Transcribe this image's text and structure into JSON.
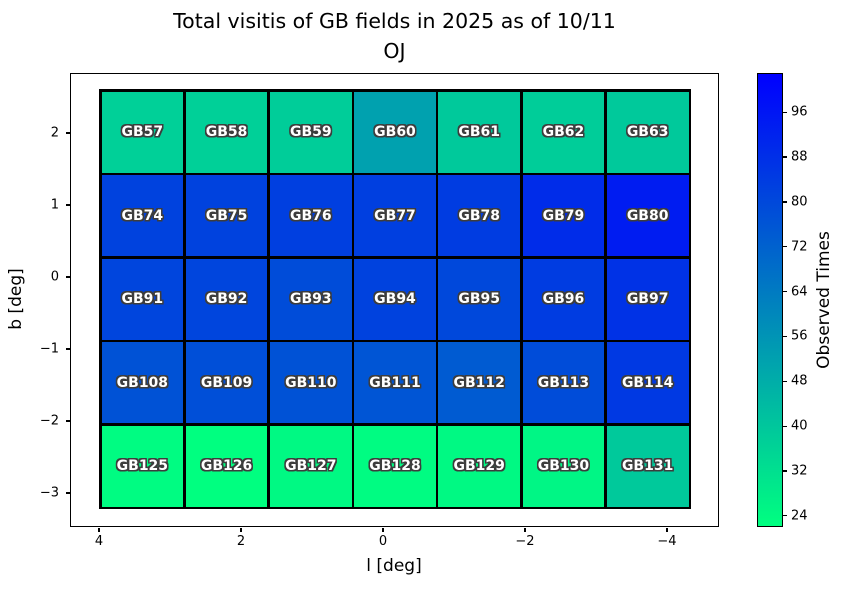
{
  "title": {
    "line1": "Total visitis of GB fields in 2025 as of 10/11",
    "line2": "OJ"
  },
  "axes": {
    "xlabel": "l [deg]",
    "ylabel": "b [deg]",
    "x_tick_labels": [
      "4",
      "2",
      "0",
      "−2",
      "−4"
    ],
    "y_tick_labels": [
      "2",
      "1",
      "0",
      "−1",
      "−2",
      "−3"
    ],
    "x_axis_inverted": true
  },
  "colorbar": {
    "label": "Observed Times",
    "ticks": [
      96,
      88,
      80,
      72,
      64,
      56,
      48,
      40,
      32,
      24
    ],
    "vmin": 22,
    "vmax": 103,
    "color_low": "#00ff80",
    "color_high": "#0000ff"
  },
  "chart_data": {
    "type": "heatmap",
    "title": "Total visitis of GB fields in 2025 as of 10/11 OJ",
    "xlabel": "l [deg]",
    "ylabel": "b [deg]",
    "colormap": "winter_r",
    "colorbar_label": "Observed Times",
    "vmin": 22,
    "vmax": 103,
    "x_centers_deg": [
      3.6,
      2.4,
      1.2,
      0.0,
      -1.2,
      -2.4,
      -3.6
    ],
    "y_centers_deg": [
      2.0,
      0.85,
      -0.3,
      -1.5,
      -2.65
    ],
    "grid": "7 columns x 5 rows, black cell edges",
    "rows": [
      {
        "b": 2.0,
        "cells": [
          {
            "label": "GB57",
            "value": 37
          },
          {
            "label": "GB58",
            "value": 37
          },
          {
            "label": "GB59",
            "value": 38
          },
          {
            "label": "GB60",
            "value": 52
          },
          {
            "label": "GB61",
            "value": 39
          },
          {
            "label": "GB62",
            "value": 38
          },
          {
            "label": "GB63",
            "value": 39
          }
        ]
      },
      {
        "b": 0.85,
        "cells": [
          {
            "label": "GB74",
            "value": 82
          },
          {
            "label": "GB75",
            "value": 82
          },
          {
            "label": "GB76",
            "value": 83
          },
          {
            "label": "GB77",
            "value": 83
          },
          {
            "label": "GB78",
            "value": 84
          },
          {
            "label": "GB79",
            "value": 89
          },
          {
            "label": "GB80",
            "value": 94
          }
        ]
      },
      {
        "b": -0.3,
        "cells": [
          {
            "label": "GB91",
            "value": 81
          },
          {
            "label": "GB92",
            "value": 81
          },
          {
            "label": "GB93",
            "value": 79
          },
          {
            "label": "GB94",
            "value": 82
          },
          {
            "label": "GB95",
            "value": 80
          },
          {
            "label": "GB96",
            "value": 84
          },
          {
            "label": "GB97",
            "value": 87
          }
        ]
      },
      {
        "b": -1.5,
        "cells": [
          {
            "label": "GB108",
            "value": 77
          },
          {
            "label": "GB109",
            "value": 78
          },
          {
            "label": "GB110",
            "value": 77
          },
          {
            "label": "GB111",
            "value": 76
          },
          {
            "label": "GB112",
            "value": 74
          },
          {
            "label": "GB113",
            "value": 79
          },
          {
            "label": "GB114",
            "value": 85
          }
        ]
      },
      {
        "b": -2.65,
        "cells": [
          {
            "label": "GB125",
            "value": 23
          },
          {
            "label": "GB126",
            "value": 22
          },
          {
            "label": "GB127",
            "value": 24
          },
          {
            "label": "GB128",
            "value": 23
          },
          {
            "label": "GB129",
            "value": 24
          },
          {
            "label": "GB130",
            "value": 25
          },
          {
            "label": "GB131",
            "value": 39
          }
        ]
      }
    ]
  }
}
